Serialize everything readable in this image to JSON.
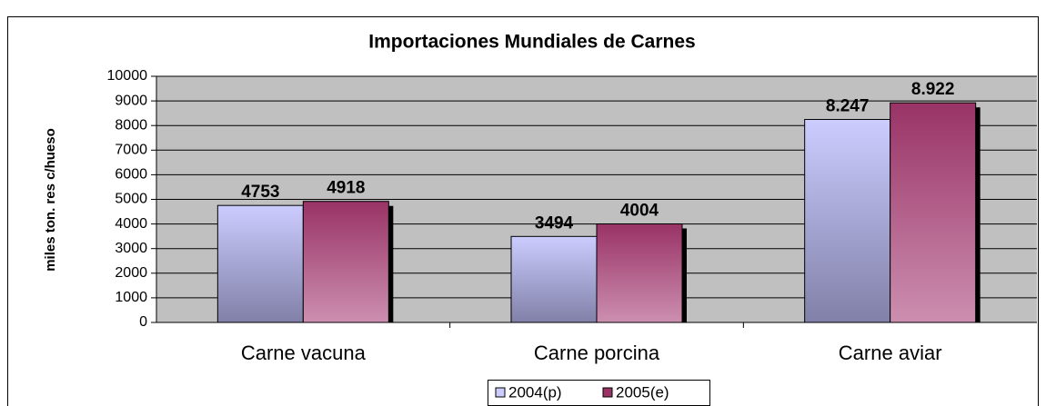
{
  "chart_data": {
    "type": "bar",
    "title": "Importaciones Mundiales de Carnes",
    "y_label": "miles ton. res c/hueso",
    "categories": [
      "Carne vacuna",
      "Carne porcina",
      "Carne aviar"
    ],
    "series": [
      {
        "name": "2004(p)",
        "color": "#ccccff",
        "values": [
          4753,
          3494,
          8247
        ],
        "value_labels": [
          "4753",
          "3494",
          "8.247"
        ]
      },
      {
        "name": "2005(e)",
        "color": "#993366",
        "values": [
          4918,
          4004,
          8922
        ],
        "value_labels": [
          "4918",
          "4004",
          "8.922"
        ]
      }
    ],
    "ylim": [
      0,
      10000
    ],
    "yticks": [
      0,
      1000,
      2000,
      3000,
      4000,
      5000,
      6000,
      7000,
      8000,
      9000,
      10000
    ],
    "grid": true
  }
}
